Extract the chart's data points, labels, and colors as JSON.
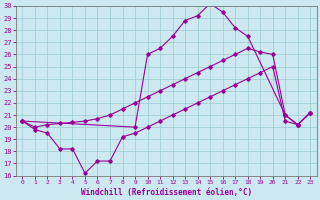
{
  "xlabel": "Windchill (Refroidissement éolien,°C)",
  "bg_color": "#cce8f0",
  "line_color": "#990099",
  "xlim": [
    -0.5,
    23.5
  ],
  "ylim": [
    16,
    30
  ],
  "xticks": [
    0,
    1,
    2,
    3,
    4,
    5,
    6,
    7,
    8,
    9,
    10,
    11,
    12,
    13,
    14,
    15,
    16,
    17,
    18,
    19,
    20,
    21,
    22,
    23
  ],
  "yticks": [
    16,
    17,
    18,
    19,
    20,
    21,
    22,
    23,
    24,
    25,
    26,
    27,
    28,
    29,
    30
  ],
  "line1_x": [
    0,
    1,
    2,
    3,
    4,
    5,
    6,
    7,
    8,
    9,
    10,
    11,
    12,
    13,
    14,
    15,
    16,
    17,
    18,
    19,
    20,
    21,
    22,
    23
  ],
  "line1_y": [
    20.5,
    19.8,
    19.5,
    18.2,
    18.2,
    16.2,
    17.2,
    17.2,
    19.2,
    19.5,
    20.0,
    20.5,
    21.0,
    21.5,
    22.0,
    22.5,
    23.0,
    23.5,
    24.0,
    24.5,
    25.0,
    20.5,
    20.2,
    21.2
  ],
  "line2_x": [
    0,
    1,
    2,
    3,
    4,
    5,
    6,
    7,
    8,
    9,
    10,
    11,
    12,
    13,
    14,
    15,
    16,
    17,
    18,
    19,
    20,
    21,
    22,
    23
  ],
  "line2_y": [
    20.5,
    20.0,
    20.2,
    20.3,
    20.4,
    20.5,
    20.7,
    21.0,
    21.5,
    22.0,
    22.5,
    23.0,
    23.5,
    24.0,
    24.5,
    25.0,
    25.5,
    26.0,
    26.5,
    26.2,
    26.0,
    21.0,
    20.2,
    21.2
  ],
  "line3_x": [
    0,
    9,
    10,
    11,
    12,
    13,
    14,
    15,
    16,
    17,
    18,
    21,
    22,
    23
  ],
  "line3_y": [
    20.5,
    20.0,
    26.0,
    26.5,
    27.5,
    28.8,
    29.2,
    30.2,
    29.5,
    28.2,
    27.5,
    21.0,
    20.2,
    21.2
  ]
}
